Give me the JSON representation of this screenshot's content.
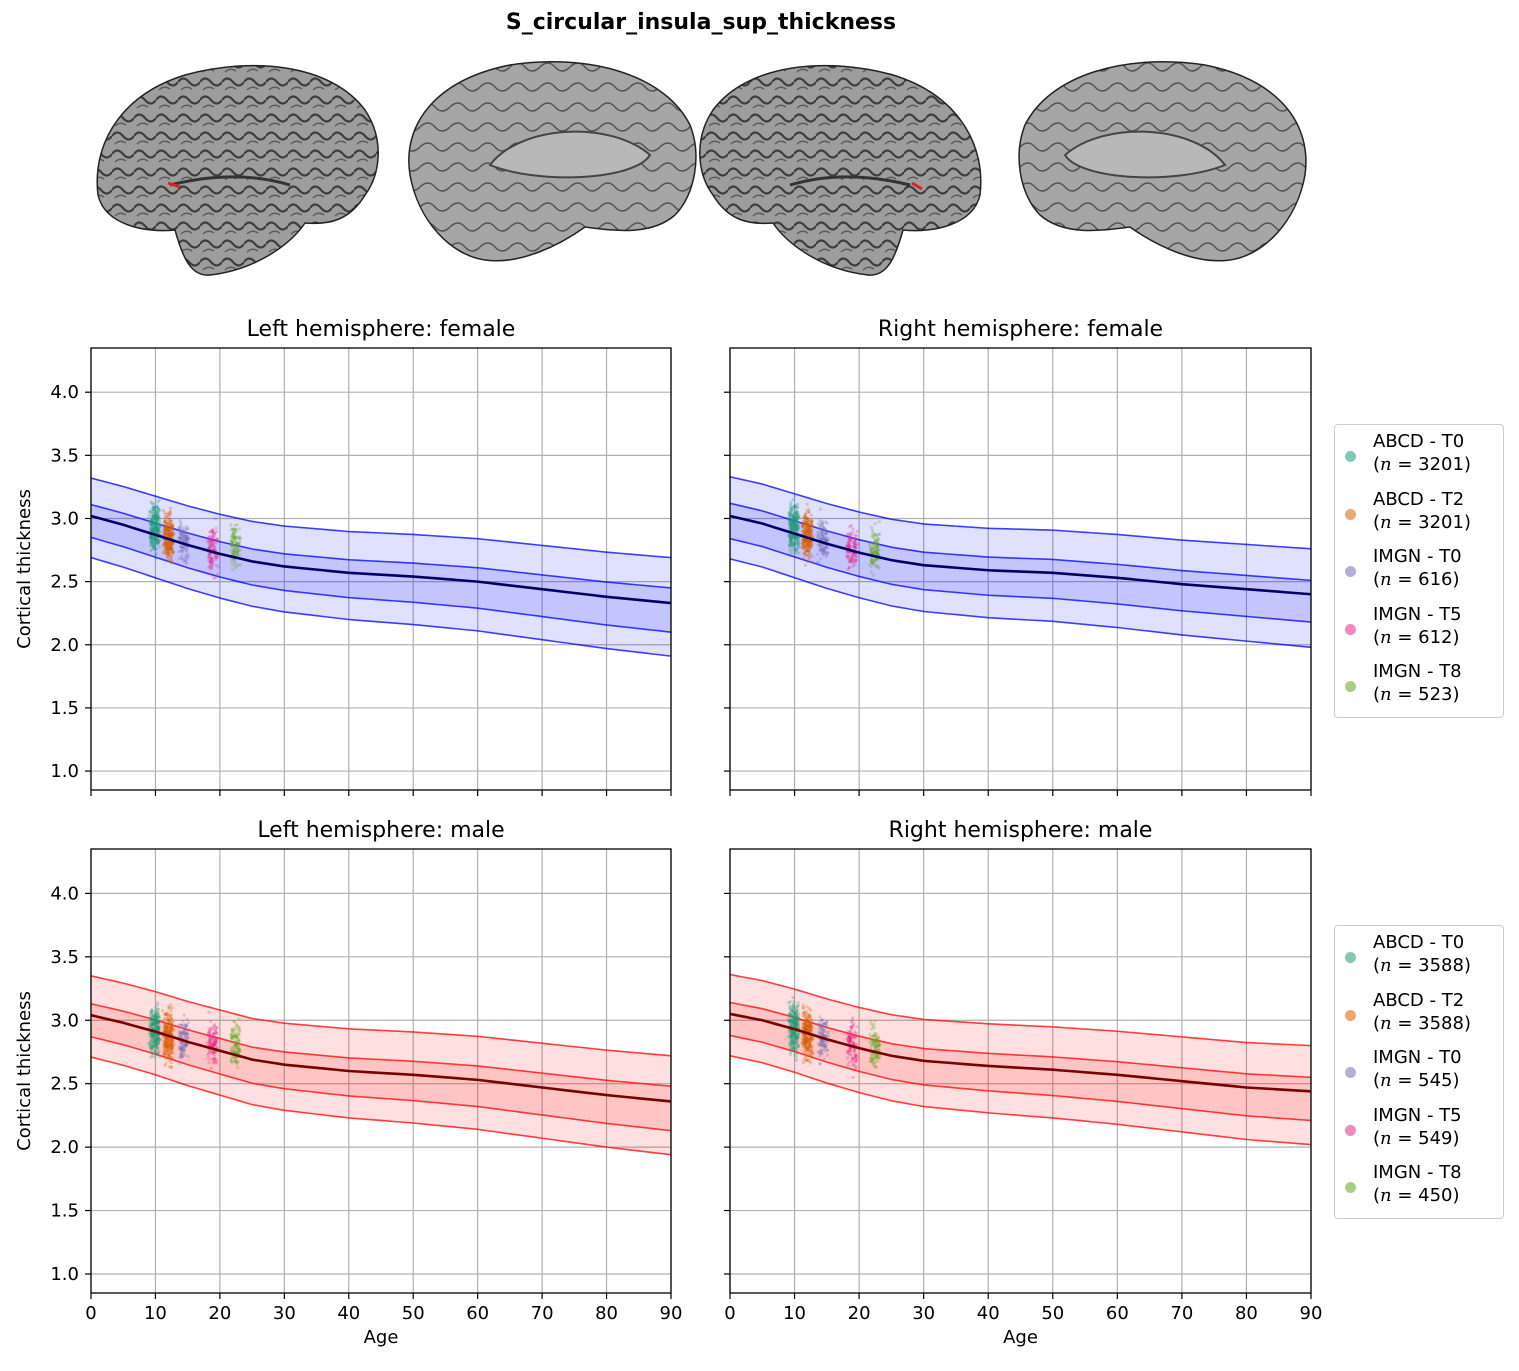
{
  "figure": {
    "title": "S_circular_insula_sup_thickness"
  },
  "brains": {
    "views": [
      "left-lateral",
      "left-medial",
      "right-lateral",
      "right-medial"
    ],
    "surface_color": "#9a9a9a",
    "highlight_color": "#d62728"
  },
  "colors": {
    "female_band": "#0000ff",
    "female_median": "#000066",
    "male_band": "#ff0000",
    "male_median": "#7a0000",
    "datasets": {
      "ABCD - T0": "#1b9e77",
      "ABCD - T2": "#d95f02",
      "IMGN - T0": "#7570b3",
      "IMGN - T5": "#e7298a",
      "IMGN - T8": "#66a61e"
    }
  },
  "legends": {
    "female": [
      {
        "name": "ABCD - T0",
        "n": "(n = 3201)",
        "n_prefix": "(",
        "n_italic": "n",
        "n_rest": " = 3201)"
      },
      {
        "name": "ABCD - T2",
        "n_prefix": "(",
        "n_italic": "n",
        "n_rest": " = 3201)"
      },
      {
        "name": "IMGN - T0",
        "n_prefix": "(",
        "n_italic": "n",
        "n_rest": " = 616)"
      },
      {
        "name": "IMGN - T5",
        "n_prefix": "(",
        "n_italic": "n",
        "n_rest": " = 612)"
      },
      {
        "name": "IMGN - T8",
        "n_prefix": "(",
        "n_italic": "n",
        "n_rest": " = 523)"
      }
    ],
    "male": [
      {
        "name": "ABCD - T0",
        "n_prefix": "(",
        "n_italic": "n",
        "n_rest": " = 3588)"
      },
      {
        "name": "ABCD - T2",
        "n_prefix": "(",
        "n_italic": "n",
        "n_rest": " = 3588)"
      },
      {
        "name": "IMGN - T0",
        "n_prefix": "(",
        "n_italic": "n",
        "n_rest": " = 545)"
      },
      {
        "name": "IMGN - T5",
        "n_prefix": "(",
        "n_italic": "n",
        "n_rest": " = 549)"
      },
      {
        "name": "IMGN - T8",
        "n_prefix": "(",
        "n_italic": "n",
        "n_rest": " = 450)"
      }
    ]
  },
  "chart_data": [
    {
      "type": "line",
      "title": "Left hemisphere: female",
      "xlabel": "",
      "ylabel": "Cortical thickness",
      "xlim": [
        0,
        90
      ],
      "ylim": [
        0.85,
        4.35
      ],
      "xticks": [
        0,
        10,
        20,
        30,
        40,
        50,
        60,
        70,
        80,
        90
      ],
      "yticks": [
        1.0,
        1.5,
        2.0,
        2.5,
        3.0,
        3.5,
        4.0
      ],
      "grid": true,
      "sex": "female",
      "x": [
        0,
        5,
        10,
        15,
        20,
        25,
        30,
        40,
        50,
        60,
        70,
        80,
        90
      ],
      "median": [
        3.02,
        2.95,
        2.87,
        2.79,
        2.72,
        2.66,
        2.62,
        2.57,
        2.54,
        2.5,
        2.44,
        2.38,
        2.33
      ],
      "offsets": [
        -0.33,
        -0.17,
        0.0,
        0.09,
        0.3
      ],
      "offsets_end": [
        -0.42,
        -0.23,
        0.0,
        0.12,
        0.36
      ],
      "clusters": [
        {
          "dataset": "ABCD - T0",
          "age": 9.9,
          "center": 2.92,
          "spread": 0.13
        },
        {
          "dataset": "ABCD - T2",
          "age": 12.0,
          "center": 2.85,
          "spread": 0.13
        },
        {
          "dataset": "IMGN - T0",
          "age": 14.4,
          "center": 2.82,
          "spread": 0.12
        },
        {
          "dataset": "IMGN - T5",
          "age": 18.9,
          "center": 2.75,
          "spread": 0.12
        },
        {
          "dataset": "IMGN - T8",
          "age": 22.4,
          "center": 2.78,
          "spread": 0.12
        }
      ]
    },
    {
      "type": "line",
      "title": "Right hemisphere: female",
      "xlabel": "",
      "ylabel": "",
      "xlim": [
        0,
        90
      ],
      "ylim": [
        0.85,
        4.35
      ],
      "xticks": [
        0,
        10,
        20,
        30,
        40,
        50,
        60,
        70,
        80,
        90
      ],
      "yticks": [
        1.0,
        1.5,
        2.0,
        2.5,
        3.0,
        3.5,
        4.0
      ],
      "grid": true,
      "sex": "female",
      "x": [
        0,
        5,
        10,
        15,
        20,
        25,
        30,
        40,
        50,
        60,
        70,
        80,
        90
      ],
      "median": [
        3.02,
        2.96,
        2.88,
        2.8,
        2.73,
        2.67,
        2.63,
        2.59,
        2.57,
        2.53,
        2.48,
        2.44,
        2.4
      ],
      "offsets": [
        -0.34,
        -0.18,
        0.0,
        0.1,
        0.31
      ],
      "offsets_end": [
        -0.42,
        -0.22,
        0.0,
        0.11,
        0.36
      ],
      "clusters": [
        {
          "dataset": "ABCD - T0",
          "age": 9.9,
          "center": 2.93,
          "spread": 0.14
        },
        {
          "dataset": "ABCD - T2",
          "age": 12.0,
          "center": 2.87,
          "spread": 0.13
        },
        {
          "dataset": "IMGN - T0",
          "age": 14.4,
          "center": 2.83,
          "spread": 0.12
        },
        {
          "dataset": "IMGN - T5",
          "age": 18.9,
          "center": 2.77,
          "spread": 0.12
        },
        {
          "dataset": "IMGN - T8",
          "age": 22.4,
          "center": 2.76,
          "spread": 0.12
        }
      ]
    },
    {
      "type": "line",
      "title": "Left hemisphere: male",
      "xlabel": "Age",
      "ylabel": "Cortical thickness",
      "xlim": [
        0,
        90
      ],
      "ylim": [
        0.85,
        4.35
      ],
      "xticks": [
        0,
        10,
        20,
        30,
        40,
        50,
        60,
        70,
        80,
        90
      ],
      "yticks": [
        1.0,
        1.5,
        2.0,
        2.5,
        3.0,
        3.5,
        4.0
      ],
      "grid": true,
      "sex": "male",
      "x": [
        0,
        5,
        10,
        15,
        20,
        25,
        30,
        40,
        50,
        60,
        70,
        80,
        90
      ],
      "median": [
        3.04,
        2.98,
        2.91,
        2.83,
        2.76,
        2.69,
        2.65,
        2.6,
        2.57,
        2.53,
        2.47,
        2.41,
        2.36
      ],
      "offsets": [
        -0.33,
        -0.17,
        0.0,
        0.09,
        0.31
      ],
      "offsets_end": [
        -0.42,
        -0.23,
        0.0,
        0.12,
        0.36
      ],
      "clusters": [
        {
          "dataset": "ABCD - T0",
          "age": 9.9,
          "center": 2.93,
          "spread": 0.13
        },
        {
          "dataset": "ABCD - T2",
          "age": 12.0,
          "center": 2.88,
          "spread": 0.14
        },
        {
          "dataset": "IMGN - T0",
          "age": 14.4,
          "center": 2.85,
          "spread": 0.12
        },
        {
          "dataset": "IMGN - T5",
          "age": 18.9,
          "center": 2.82,
          "spread": 0.12
        },
        {
          "dataset": "IMGN - T8",
          "age": 22.4,
          "center": 2.8,
          "spread": 0.12
        }
      ]
    },
    {
      "type": "line",
      "title": "Right hemisphere: male",
      "xlabel": "Age",
      "ylabel": "",
      "xlim": [
        0,
        90
      ],
      "ylim": [
        0.85,
        4.35
      ],
      "xticks": [
        0,
        10,
        20,
        30,
        40,
        50,
        60,
        70,
        80,
        90
      ],
      "yticks": [
        1.0,
        1.5,
        2.0,
        2.5,
        3.0,
        3.5,
        4.0
      ],
      "grid": true,
      "sex": "male",
      "x": [
        0,
        5,
        10,
        15,
        20,
        25,
        30,
        40,
        50,
        60,
        70,
        80,
        90
      ],
      "median": [
        3.05,
        3.0,
        2.93,
        2.85,
        2.78,
        2.72,
        2.68,
        2.64,
        2.61,
        2.57,
        2.52,
        2.47,
        2.44
      ],
      "offsets": [
        -0.33,
        -0.17,
        0.0,
        0.09,
        0.31
      ],
      "offsets_end": [
        -0.42,
        -0.23,
        0.0,
        0.11,
        0.36
      ],
      "clusters": [
        {
          "dataset": "ABCD - T0",
          "age": 9.9,
          "center": 2.95,
          "spread": 0.14
        },
        {
          "dataset": "ABCD - T2",
          "age": 12.0,
          "center": 2.9,
          "spread": 0.14
        },
        {
          "dataset": "IMGN - T0",
          "age": 14.4,
          "center": 2.86,
          "spread": 0.12
        },
        {
          "dataset": "IMGN - T5",
          "age": 18.9,
          "center": 2.82,
          "spread": 0.12
        },
        {
          "dataset": "IMGN - T8",
          "age": 22.4,
          "center": 2.8,
          "spread": 0.12
        }
      ]
    }
  ]
}
